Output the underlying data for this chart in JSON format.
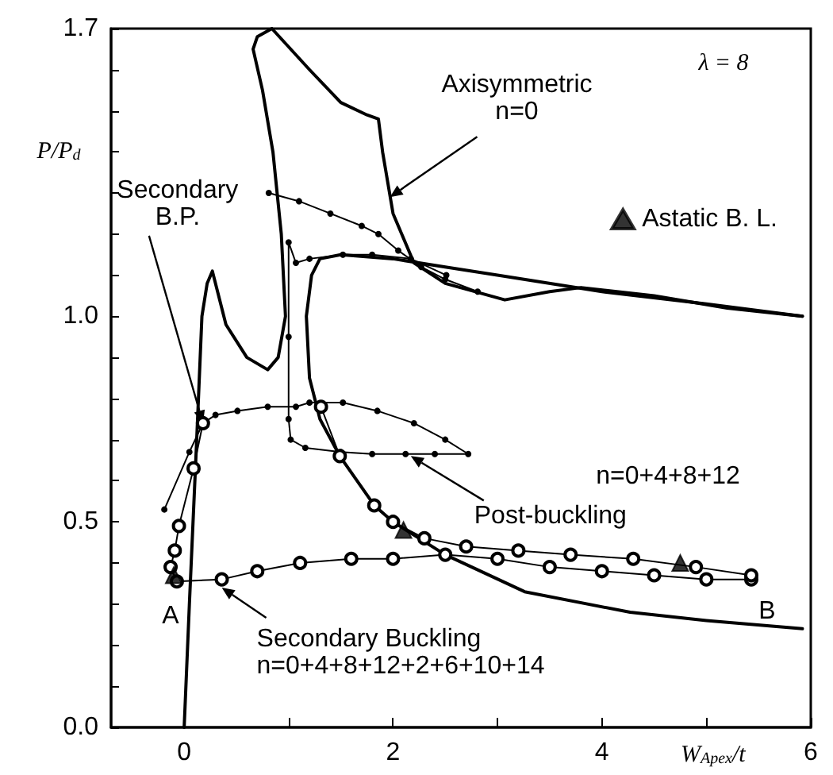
{
  "chart_data": {
    "type": "line",
    "xlabel": "W$_{Apex}$/t",
    "ylabel": "P/P$_{d}$",
    "xlim": [
      -0.7,
      6
    ],
    "ylim": [
      0,
      1.7
    ],
    "xticks": [
      0,
      {
        "value": 1,
        "label": null
      },
      2,
      {
        "value": 3,
        "label": null
      },
      4,
      {
        "value": 5,
        "label": null
      },
      6
    ],
    "yticks": [
      {
        "value": 0,
        "label": "0.0"
      },
      {
        "value": 0.1,
        "label": null
      },
      {
        "value": 0.2,
        "label": null
      },
      {
        "value": 0.3,
        "label": null
      },
      {
        "value": 0.4,
        "label": null
      },
      {
        "value": 0.5,
        "label": "0.5"
      },
      {
        "value": 0.6,
        "label": null
      },
      {
        "value": 0.7,
        "label": null
      },
      {
        "value": 0.8,
        "label": null
      },
      {
        "value": 0.9,
        "label": null
      },
      {
        "value": 1.0,
        "label": "1.0"
      },
      {
        "value": 1.1,
        "label": null
      },
      {
        "value": 1.2,
        "label": null
      },
      {
        "value": 1.3,
        "label": null
      },
      {
        "value": 1.4,
        "label": null
      },
      {
        "value": 1.5,
        "label": null
      },
      {
        "value": 1.6,
        "label": null
      },
      {
        "value": 1.7,
        "label": "1.7"
      }
    ],
    "grid": false,
    "legend": "right",
    "series": [
      {
        "color": "#000000",
        "marker": "none",
        "x": [
          0,
          0.05,
          0.12,
          0.17,
          0.22,
          0.27,
          0.4,
          0.6,
          0.8,
          0.9,
          0.97,
          0.93,
          0.85,
          0.75,
          0.66,
          0.7,
          0.84,
          1.2,
          1.5,
          1.75,
          1.86,
          1.9,
          2.0,
          2.2,
          2.5,
          3.07,
          3.5,
          3.8,
          4.5,
          5.2,
          5.92
        ],
        "values": [
          0,
          0.3,
          0.7,
          1.0,
          1.08,
          1.11,
          0.98,
          0.9,
          0.87,
          0.9,
          1.0,
          1.2,
          1.4,
          1.55,
          1.65,
          1.68,
          1.7,
          1.6,
          1.52,
          1.49,
          1.48,
          1.4,
          1.25,
          1.13,
          1.08,
          1.04,
          1.06,
          1.07,
          1.05,
          1.02,
          1.0
        ]
      },
      {
        "color": "#000000",
        "marker": "none",
        "x": [
          5.92,
          5.0,
          4.0,
          3.0,
          2.5,
          2.0,
          1.5,
          1.3,
          1.22,
          1.17,
          1.2,
          1.3,
          1.49,
          1.82,
          2.0,
          2.5,
          3.26,
          4.27,
          5.0,
          5.92
        ],
        "values": [
          1.0,
          1.03,
          1.06,
          1.1,
          1.12,
          1.14,
          1.15,
          1.14,
          1.1,
          1.0,
          0.85,
          0.75,
          0.66,
          0.54,
          0.5,
          0.42,
          0.33,
          0.28,
          0.26,
          0.24
        ]
      },
      {
        "color": "#000000",
        "marker": "circle",
        "x": [
          0.81,
          1.1,
          1.4,
          1.7,
          1.86,
          2.05,
          2.27,
          2.5,
          2.81
        ],
        "values": [
          1.3,
          1.28,
          1.25,
          1.22,
          1.2,
          1.16,
          1.12,
          1.09,
          1.06
        ]
      },
      {
        "color": "#000000",
        "marker": "circle",
        "x": [
          2.51,
          2.17,
          1.8,
          1.52,
          1.2,
          1.07,
          1.0,
          1.0,
          1.0,
          1.02,
          1.16,
          1.5,
          1.8,
          2.12,
          2.4,
          2.72,
          2.5,
          2.2,
          1.85,
          1.52,
          1.2,
          1.07,
          0.8,
          0.51,
          0.3,
          0.18,
          0.05,
          -0.19
        ],
        "values": [
          1.1,
          1.14,
          1.15,
          1.15,
          1.14,
          1.13,
          1.18,
          0.95,
          0.75,
          0.7,
          0.68,
          0.67,
          0.665,
          0.665,
          0.665,
          0.665,
          0.7,
          0.74,
          0.77,
          0.79,
          0.79,
          0.78,
          0.78,
          0.77,
          0.76,
          0.74,
          0.67,
          0.53
        ]
      },
      {
        "color": "#000000",
        "marker": "circle_open",
        "x": [
          0.18,
          0.09,
          -0.05,
          -0.09,
          -0.13,
          -0.07,
          0.36,
          0.7,
          1.11,
          1.6,
          2.0,
          2.5,
          3.0,
          3.5,
          4.0,
          4.5,
          5.0,
          5.43
        ],
        "values": [
          0.74,
          0.63,
          0.49,
          0.43,
          0.39,
          0.355,
          0.36,
          0.38,
          0.4,
          0.41,
          0.41,
          0.42,
          0.41,
          0.39,
          0.38,
          0.37,
          0.36,
          0.36
        ]
      },
      {
        "color": "#000000",
        "marker": "circle_open",
        "x": [
          1.31,
          1.49,
          1.82,
          2.0,
          2.3,
          2.7,
          3.2,
          3.7,
          4.3,
          4.9,
          5.43
        ],
        "values": [
          0.78,
          0.66,
          0.54,
          0.5,
          0.46,
          0.44,
          0.43,
          0.42,
          0.41,
          0.39,
          0.37
        ]
      },
      {
        "type": "scatter",
        "name": "Astatic B. L.",
        "color": "#000000",
        "marker": "triangle",
        "x": [
          -0.1,
          2.1,
          4.75
        ],
        "values": [
          0.37,
          0.48,
          0.4
        ]
      }
    ],
    "annotations": [
      "λ = 8",
      {
        "text": "Axisymmetric\nn=0",
        "x": 1.97,
        "y": 1.29
      },
      {
        "text": "Secondary\nB.P.",
        "x": 0.18,
        "y": 0.74
      },
      {
        "text": "Post-buckling",
        "x": 2.17,
        "y": 0.66
      },
      "n=0+4+8+12",
      {
        "text": "Secondary Buckling\nn=0+4+8+12+2+6+10+14",
        "x": 0.36,
        "y": 0.34
      },
      {
        "text": "A",
        "x": -0.07,
        "y": 0.355
      },
      {
        "text": "B",
        "x": 5.43,
        "y": 0.36
      }
    ]
  }
}
